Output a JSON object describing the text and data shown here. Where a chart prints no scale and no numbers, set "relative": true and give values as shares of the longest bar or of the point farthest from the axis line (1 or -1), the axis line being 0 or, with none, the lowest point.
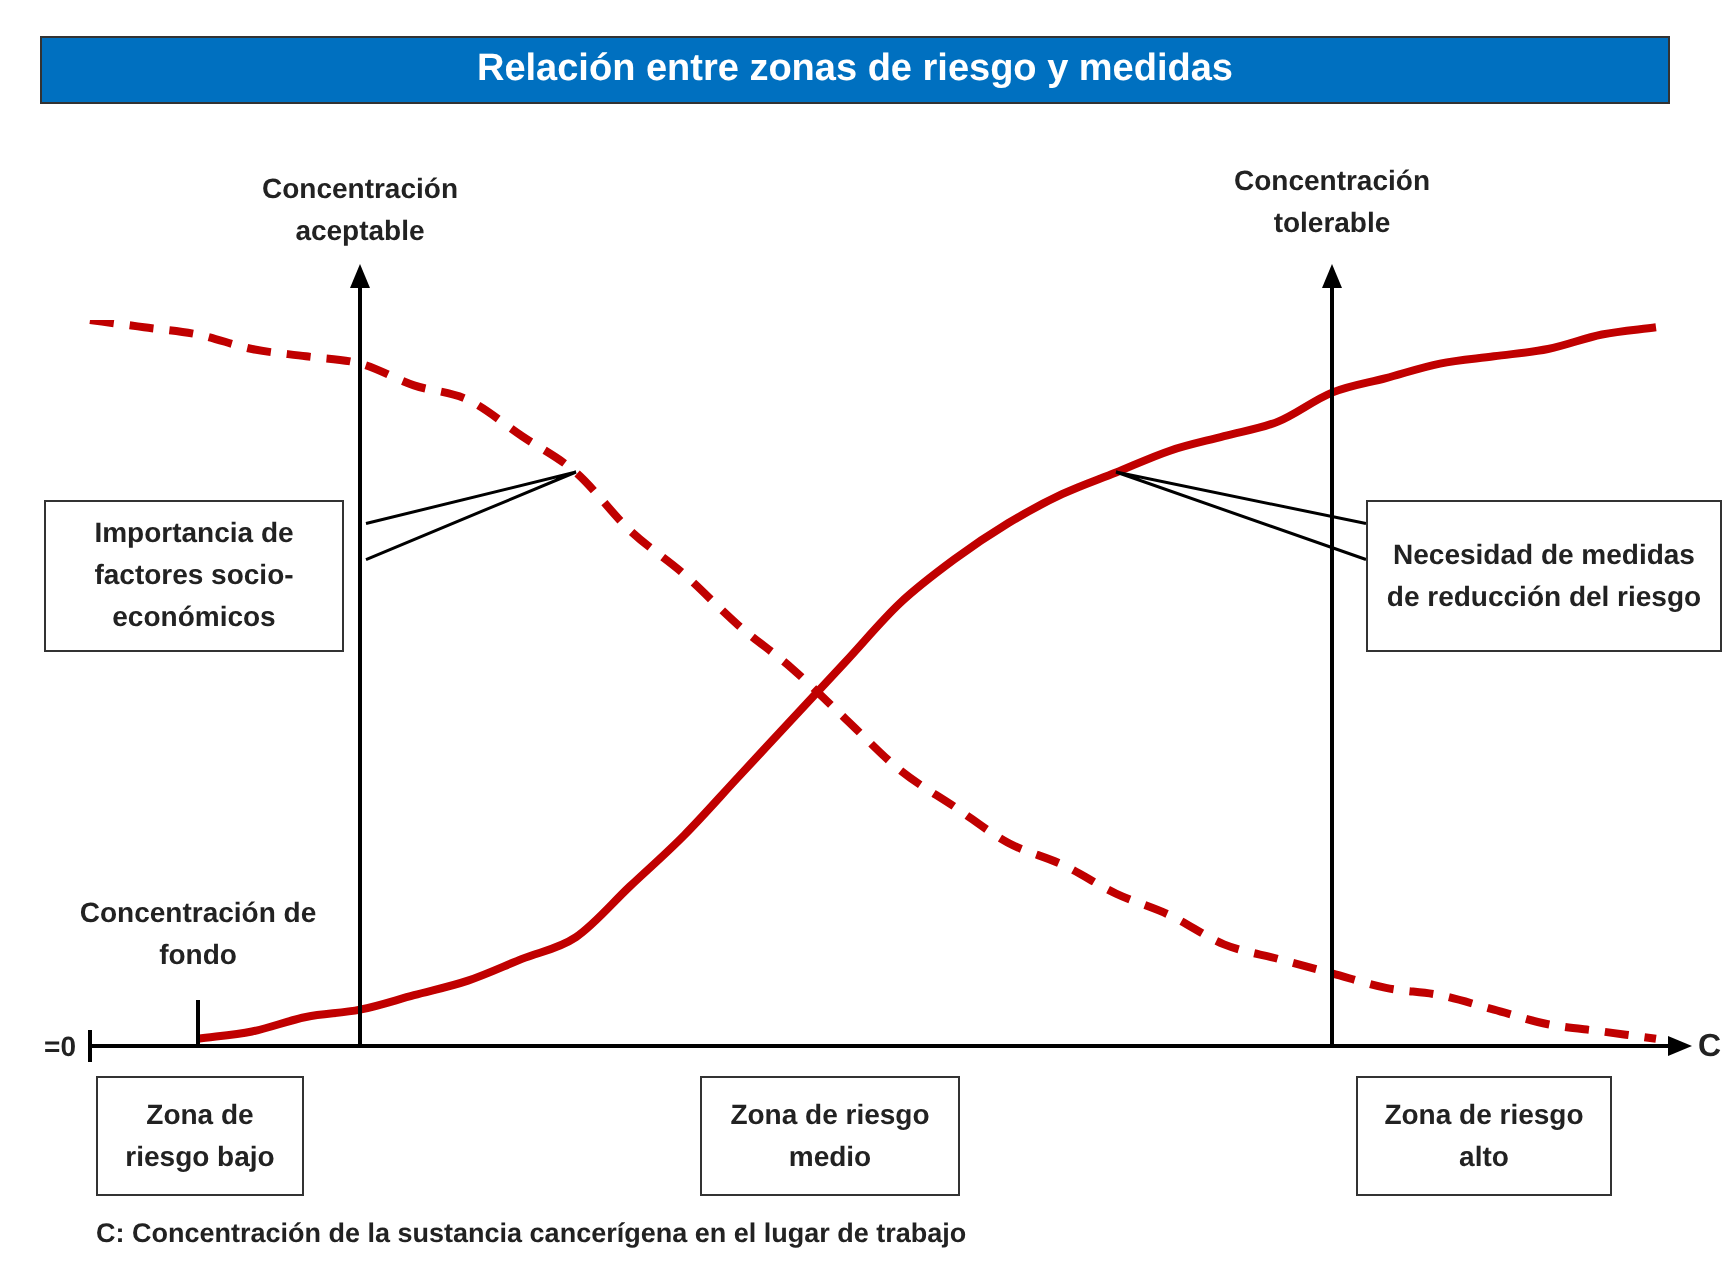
{
  "chart_data": {
    "type": "line",
    "title": "Relación entre zonas de riesgo y medidas",
    "xlabel": "C",
    "relative": true,
    "tick_labels": false,
    "marker": "none",
    "categories": [
      null,
      null,
      null,
      null,
      null,
      null,
      null,
      null,
      null,
      null,
      null,
      null,
      null,
      null,
      null,
      null,
      null,
      null,
      null,
      null,
      null,
      null,
      null,
      null,
      null,
      null,
      null,
      null,
      null,
      null
    ],
    "series": [
      {
        "type": "line",
        "color": "#c00000",
        "line_style": "solid",
        "values": [
          null,
          null,
          0.01,
          0.02,
          0.04,
          0.05,
          0.07,
          0.09,
          0.12,
          0.15,
          0.22,
          0.29,
          0.37,
          0.45,
          0.53,
          0.61,
          0.67,
          0.72,
          0.76,
          0.79,
          0.82,
          0.84,
          0.86,
          0.9,
          0.92,
          0.94,
          0.95,
          0.96,
          0.98,
          0.99
        ]
      },
      {
        "type": "line",
        "color": "#c00000",
        "line_style": "dashed",
        "values": [
          1,
          0.99,
          0.98,
          0.96,
          0.95,
          0.94,
          0.91,
          0.89,
          0.84,
          0.79,
          0.71,
          0.65,
          0.58,
          0.52,
          0.45,
          0.38,
          0.33,
          0.28,
          0.25,
          0.21,
          0.18,
          0.14,
          0.12,
          0.1,
          0.08,
          0.07,
          0.05,
          0.03,
          0.02,
          0.01
        ]
      }
    ],
    "annotations": [
      "Importancia de factores socio-económicos",
      "Necesidad de medidas de reducción del riesgo",
      "Zona de riesgo bajo",
      "Zona de riesgo medio",
      "Zona de riesgo alto",
      "C: Concentración de la sustancia cancerígena en el lugar de trabajo",
      "=0",
      "Concentración de fondo",
      "Concentración aceptable",
      "Concentración tolerable"
    ]
  }
}
